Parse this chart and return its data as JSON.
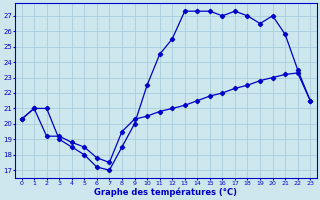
{
  "title": "Graphe des températures (°C)",
  "background_color": "#cce8ee",
  "grid_color": "#aaccdd",
  "line_color": "#0000cc",
  "xlim": [
    -0.5,
    23.5
  ],
  "ylim": [
    16.5,
    27.8
  ],
  "yticks": [
    17,
    18,
    19,
    20,
    21,
    22,
    23,
    24,
    25,
    26,
    27
  ],
  "xticks": [
    0,
    1,
    2,
    3,
    4,
    5,
    6,
    7,
    8,
    9,
    10,
    11,
    12,
    13,
    14,
    15,
    16,
    17,
    18,
    19,
    20,
    21,
    22,
    23
  ],
  "line1_x": [
    0,
    1,
    2,
    3,
    4,
    5,
    6,
    7,
    8,
    9,
    10,
    11,
    12,
    13,
    14,
    15,
    16,
    17,
    18,
    19,
    20,
    21,
    22,
    23
  ],
  "line1_y": [
    20.3,
    21.0,
    21.0,
    19.0,
    18.5,
    18.0,
    17.2,
    17.0,
    18.5,
    20.0,
    22.5,
    24.5,
    25.5,
    27.3,
    27.3,
    27.3,
    27.0,
    27.3,
    27.0,
    26.5,
    27.0,
    25.8,
    23.5,
    21.5
  ],
  "line2_x": [
    0,
    1,
    2,
    3,
    4,
    5,
    6,
    7,
    8,
    9,
    10,
    11,
    12,
    13,
    14,
    15,
    16,
    17,
    18,
    19,
    20,
    21,
    22,
    23
  ],
  "line2_y": [
    20.3,
    21.0,
    19.2,
    19.2,
    18.8,
    18.5,
    17.8,
    17.5,
    19.5,
    20.3,
    20.5,
    20.8,
    21.0,
    21.2,
    21.5,
    21.8,
    22.0,
    22.3,
    22.5,
    22.8,
    23.0,
    23.2,
    23.3,
    21.5
  ]
}
